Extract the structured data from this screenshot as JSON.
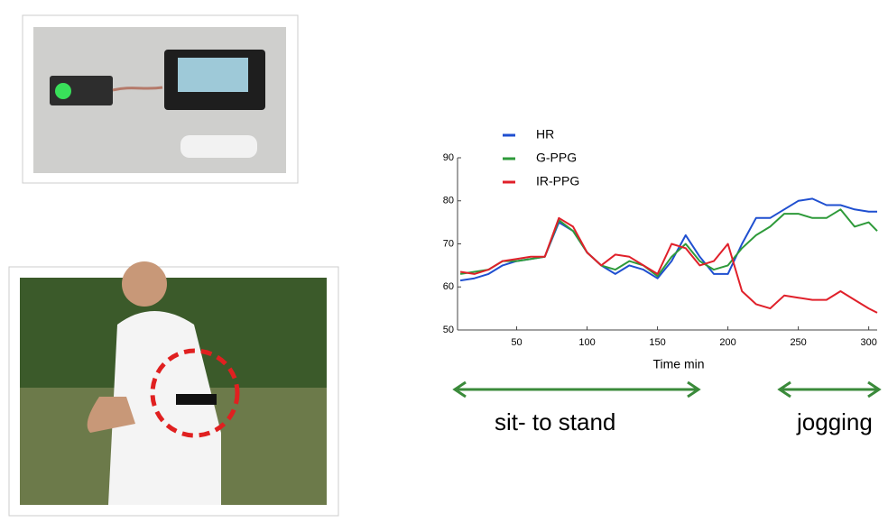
{
  "chart_data": {
    "type": "line",
    "x_label": "Time min",
    "annotations": [
      "sit- to stand",
      "jogging"
    ],
    "x": [
      10,
      20,
      30,
      40,
      50,
      60,
      70,
      80,
      90,
      100,
      110,
      120,
      130,
      140,
      150,
      160,
      170,
      180,
      190,
      200,
      210,
      220,
      230,
      240,
      250,
      260,
      270,
      280,
      290,
      300,
      306
    ],
    "series": [
      {
        "name": "HR",
        "color": "#1f4fd0",
        "values": [
          61.5,
          62,
          63,
          65,
          66,
          66.5,
          67,
          75,
          73,
          68,
          65,
          63,
          65,
          64,
          62,
          66,
          72,
          67,
          63,
          63,
          70,
          76,
          76,
          78,
          80,
          80.5,
          79,
          79,
          78,
          77.5,
          77.5
        ]
      },
      {
        "name": "G-PPG",
        "color": "#2e9a3a",
        "values": [
          63,
          63.5,
          64,
          66,
          66,
          66.5,
          67,
          75.5,
          73,
          68,
          65,
          64,
          66,
          65,
          62.5,
          67,
          70,
          66,
          64,
          65,
          69,
          72,
          74,
          77,
          77,
          76,
          76,
          78,
          74,
          75,
          73
        ]
      },
      {
        "name": "IR-PPG",
        "color": "#e0202a",
        "values": [
          63.5,
          63,
          64,
          66,
          66.5,
          67,
          67,
          76,
          74,
          68,
          65,
          67.5,
          67,
          65,
          63,
          70,
          69,
          65,
          66,
          70,
          59,
          56,
          55,
          58,
          57.5,
          57,
          57,
          59,
          57,
          55,
          54
        ]
      }
    ],
    "xlim": [
      8,
      306
    ],
    "ylim": [
      50,
      90
    ],
    "xticks": [
      50,
      100,
      150,
      200,
      250,
      300
    ],
    "yticks": [
      50,
      60,
      70,
      80,
      90
    ]
  }
}
